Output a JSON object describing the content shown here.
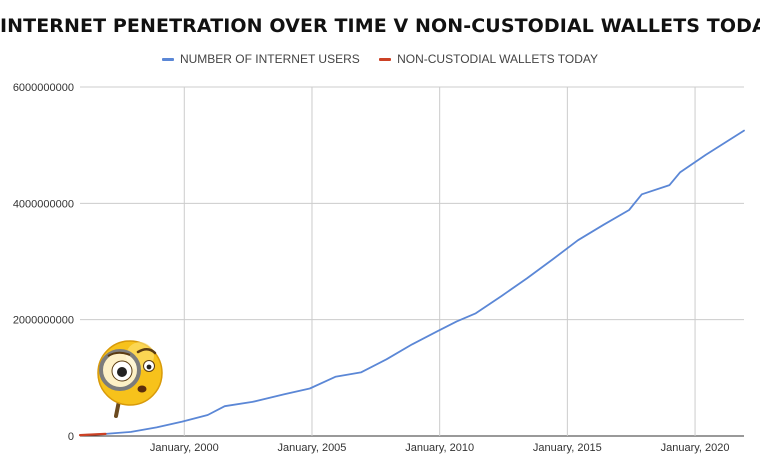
{
  "chart_data": {
    "type": "line",
    "title": "INTERNET PENETRATION OVER TIME V NON-CUSTODIAL WALLETS TODAY",
    "xlabel": "",
    "ylabel": "",
    "ylim": [
      0,
      6000000000
    ],
    "xlim": [
      "1995-12",
      "2021-12"
    ],
    "grid": true,
    "legend_position": "top",
    "y_ticks": [
      {
        "value": 0,
        "label": "0"
      },
      {
        "value": 2000000000,
        "label": "2000000000"
      },
      {
        "value": 4000000000,
        "label": "4000000000"
      },
      {
        "value": 6000000000,
        "label": "6000000000"
      }
    ],
    "x_ticks": [
      {
        "value": "2000-01",
        "label": "January, 2000"
      },
      {
        "value": "2005-01",
        "label": "January, 2005"
      },
      {
        "value": "2010-01",
        "label": "January, 2010"
      },
      {
        "value": "2015-01",
        "label": "January, 2015"
      },
      {
        "value": "2020-01",
        "label": "January, 2020"
      }
    ],
    "series": [
      {
        "name": "NUMBER OF INTERNET USERS",
        "color": "#5b87d6",
        "points": [
          {
            "x": "1995-12",
            "y": 16000000
          },
          {
            "x": "1996-12",
            "y": 36000000
          },
          {
            "x": "1997-12",
            "y": 70000000
          },
          {
            "x": "1998-12",
            "y": 147000000
          },
          {
            "x": "1999-12",
            "y": 248000000
          },
          {
            "x": "2000-12",
            "y": 361000000
          },
          {
            "x": "2001-08",
            "y": 513000000
          },
          {
            "x": "2002-09",
            "y": 587000000
          },
          {
            "x": "2003-12",
            "y": 719000000
          },
          {
            "x": "2004-12",
            "y": 817000000
          },
          {
            "x": "2005-12",
            "y": 1018000000
          },
          {
            "x": "2006-12",
            "y": 1093000000
          },
          {
            "x": "2007-12",
            "y": 1319000000
          },
          {
            "x": "2008-12",
            "y": 1574000000
          },
          {
            "x": "2009-12",
            "y": 1802000000
          },
          {
            "x": "2010-09",
            "y": 1971000000
          },
          {
            "x": "2011-06",
            "y": 2110000000
          },
          {
            "x": "2012-06",
            "y": 2405000000
          },
          {
            "x": "2013-06",
            "y": 2710000000
          },
          {
            "x": "2014-06",
            "y": 3035000000
          },
          {
            "x": "2015-06",
            "y": 3366000000
          },
          {
            "x": "2016-06",
            "y": 3631000000
          },
          {
            "x": "2017-06",
            "y": 3885000000
          },
          {
            "x": "2017-12",
            "y": 4156000000
          },
          {
            "x": "2019-01",
            "y": 4313000000
          },
          {
            "x": "2019-06",
            "y": 4536000000
          },
          {
            "x": "2020-06",
            "y": 4833000000
          },
          {
            "x": "2021-12",
            "y": 5250000000
          }
        ]
      },
      {
        "name": "NON-CUSTODIAL WALLETS TODAY",
        "color": "#cc4125",
        "points": [
          {
            "x": "1995-12",
            "y": 16000000
          },
          {
            "x": "1996-12",
            "y": 36000000
          },
          {
            "x": "1996-12",
            "y": 36000000
          }
        ]
      }
    ]
  }
}
